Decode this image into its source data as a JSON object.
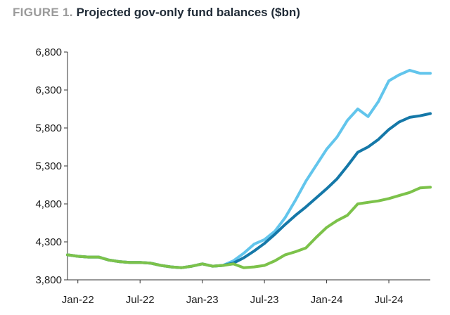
{
  "figure": {
    "label": "FIGURE 1.",
    "title": "Projected gov-only fund balances ($bn)"
  },
  "chart_data": {
    "type": "line",
    "title": "Projected gov-only fund balances ($bn)",
    "xlabel": "",
    "ylabel": "",
    "ylim": [
      3800,
      6800
    ],
    "yticks": [
      "6,800",
      "6,300",
      "5,800",
      "5,300",
      "4,800",
      "4,300",
      "3,800"
    ],
    "ytick_values": [
      6800,
      6300,
      5800,
      5300,
      4800,
      4300,
      3800
    ],
    "xticks": [
      "Jan-22",
      "Jul-22",
      "Jan-23",
      "Jul-23",
      "Jan-24",
      "Jul-24"
    ],
    "xtick_positions": [
      0,
      6,
      12,
      18,
      24,
      30
    ],
    "x_range": [
      -1,
      34
    ],
    "grid": false,
    "legend": "none",
    "series": [
      {
        "color": "#62c5ec",
        "x": [
          -1,
          0,
          1,
          2,
          3,
          4,
          5,
          6,
          7,
          8,
          9,
          10,
          11,
          12,
          13,
          14,
          15,
          16,
          17,
          18,
          19,
          20,
          21,
          22,
          23,
          24,
          25,
          26,
          27,
          28,
          29,
          30,
          31,
          32,
          33,
          34
        ],
        "values": [
          4130,
          4110,
          4100,
          4100,
          4060,
          4040,
          4030,
          4030,
          4020,
          3990,
          3970,
          3960,
          3980,
          4010,
          3980,
          3990,
          4050,
          4150,
          4270,
          4330,
          4440,
          4620,
          4850,
          5100,
          5310,
          5520,
          5680,
          5900,
          6050,
          5950,
          6150,
          6420,
          6500,
          6560,
          6520,
          6520
        ]
      },
      {
        "color": "#1578a8",
        "x": [
          -1,
          0,
          1,
          2,
          3,
          4,
          5,
          6,
          7,
          8,
          9,
          10,
          11,
          12,
          13,
          14,
          15,
          16,
          17,
          18,
          19,
          20,
          21,
          22,
          23,
          24,
          25,
          26,
          27,
          28,
          29,
          30,
          31,
          32,
          33,
          34
        ],
        "values": [
          4130,
          4110,
          4100,
          4100,
          4060,
          4040,
          4030,
          4030,
          4020,
          3990,
          3970,
          3960,
          3980,
          4010,
          3980,
          3990,
          4020,
          4090,
          4180,
          4280,
          4400,
          4530,
          4650,
          4760,
          4880,
          5000,
          5130,
          5300,
          5480,
          5550,
          5650,
          5780,
          5880,
          5940,
          5960,
          5990
        ]
      },
      {
        "color": "#7cc24a",
        "x": [
          -1,
          0,
          1,
          2,
          3,
          4,
          5,
          6,
          7,
          8,
          9,
          10,
          11,
          12,
          13,
          14,
          15,
          16,
          17,
          18,
          19,
          20,
          21,
          22,
          23,
          24,
          25,
          26,
          27,
          28,
          29,
          30,
          31,
          32,
          33,
          34
        ],
        "values": [
          4130,
          4110,
          4100,
          4100,
          4060,
          4040,
          4030,
          4030,
          4020,
          3990,
          3970,
          3960,
          3980,
          4010,
          3980,
          3990,
          4010,
          3960,
          3970,
          3990,
          4050,
          4130,
          4170,
          4220,
          4360,
          4490,
          4580,
          4650,
          4800,
          4820,
          4840,
          4870,
          4910,
          4950,
          5010,
          5020
        ]
      }
    ]
  }
}
